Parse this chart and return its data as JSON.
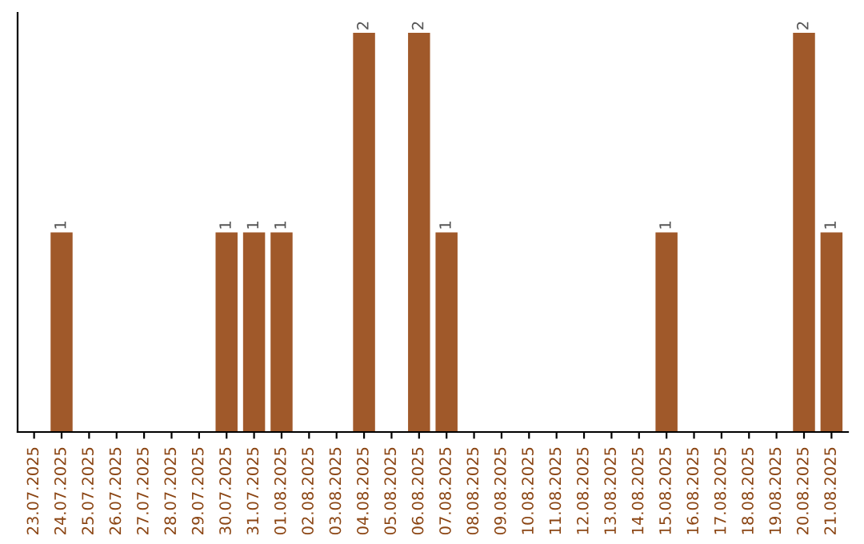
{
  "chart_data": {
    "type": "bar",
    "categories": [
      "23.07.2025",
      "24.07.2025",
      "25.07.2025",
      "26.07.2025",
      "27.07.2025",
      "28.07.2025",
      "29.07.2025",
      "30.07.2025",
      "31.07.2025",
      "01.08.2025",
      "02.08.2025",
      "03.08.2025",
      "04.08.2025",
      "05.08.2025",
      "06.08.2025",
      "07.08.2025",
      "08.08.2025",
      "09.08.2025",
      "10.08.2025",
      "11.08.2025",
      "12.08.2025",
      "13.08.2025",
      "14.08.2025",
      "15.08.2025",
      "16.08.2025",
      "17.08.2025",
      "18.08.2025",
      "19.08.2025",
      "20.08.2025",
      "21.08.2025"
    ],
    "values": [
      0,
      1,
      0,
      0,
      0,
      0,
      0,
      1,
      1,
      1,
      0,
      0,
      2,
      0,
      2,
      1,
      0,
      0,
      0,
      0,
      0,
      0,
      0,
      1,
      0,
      0,
      0,
      0,
      2,
      1
    ],
    "value_labels": [
      null,
      "1",
      null,
      null,
      null,
      null,
      null,
      "1",
      "1",
      "1",
      null,
      null,
      "2",
      null,
      "2",
      "1",
      null,
      null,
      null,
      null,
      null,
      null,
      null,
      "1",
      null,
      null,
      null,
      null,
      "2",
      "1"
    ],
    "color": "#a0592a",
    "tick_labels": "x",
    "grid": false,
    "legend": false
  }
}
